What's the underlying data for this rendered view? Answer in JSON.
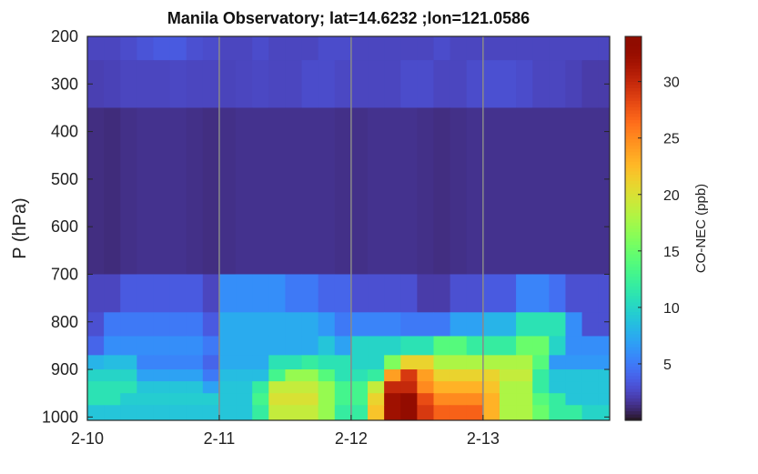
{
  "chart_data": {
    "type": "heatmap",
    "title": "Manila Observatory; lat=14.6232 ;lon=121.0586",
    "xlabel": "",
    "ylabel": "P (hPa)",
    "colorbar_label": "CO-NEC (ppb)",
    "colormap": "turbo",
    "clim": [
      0,
      34
    ],
    "colorbar_ticks": [
      5,
      10,
      15,
      20,
      25,
      30
    ],
    "x_ticks": [
      {
        "v": 0,
        "label": "2-10"
      },
      {
        "v": 1,
        "label": "2-11"
      },
      {
        "v": 2,
        "label": "2-12"
      },
      {
        "v": 3,
        "label": "2-13"
      }
    ],
    "xlim": [
      0,
      3.96
    ],
    "y_ticks": [
      200,
      300,
      400,
      500,
      600,
      700,
      800,
      900,
      1000
    ],
    "ylim": [
      200,
      1007
    ],
    "y_reversed": true,
    "x_step_days": 0.125,
    "pressure_bounds": [
      200,
      250,
      350,
      700,
      780,
      830,
      870,
      900,
      925,
      950,
      975,
      1007
    ],
    "rows": [
      [
        2.5,
        2.5,
        2.8,
        3.2,
        3.5,
        3.5,
        3.0,
        2.8,
        2.5,
        2.5,
        2.8,
        2.5,
        2.5,
        2.5,
        2.8,
        2.8,
        2.5,
        2.5,
        2.5,
        2.5,
        2.5,
        2.8,
        2.5,
        2.5,
        2.5,
        2.5,
        2.5,
        2.5,
        2.5,
        2.5,
        2.5,
        2.5
      ],
      [
        2.2,
        2.3,
        2.5,
        2.5,
        2.5,
        2.6,
        2.5,
        2.5,
        2.4,
        2.5,
        2.6,
        2.5,
        2.5,
        2.8,
        2.8,
        2.6,
        2.5,
        2.5,
        2.5,
        2.8,
        2.8,
        2.5,
        2.5,
        2.8,
        3.0,
        3.0,
        2.8,
        2.5,
        2.5,
        2.3,
        2.0,
        2.0
      ],
      [
        1.3,
        1.2,
        1.4,
        1.5,
        1.5,
        1.5,
        1.4,
        1.3,
        1.4,
        1.5,
        1.5,
        1.5,
        1.5,
        1.5,
        1.5,
        1.4,
        1.4,
        1.5,
        1.5,
        1.5,
        1.4,
        1.3,
        1.4,
        1.5,
        1.5,
        1.5,
        1.5,
        1.5,
        1.5,
        1.5,
        1.5,
        1.5
      ],
      [
        2.5,
        2.5,
        3.5,
        3.5,
        3.5,
        3.5,
        3.5,
        2.5,
        6,
        6,
        6,
        6,
        5,
        5,
        4,
        4,
        3,
        3,
        3,
        3,
        2,
        2,
        3,
        3,
        3.5,
        3.5,
        5.5,
        5.5,
        4.5,
        3,
        3,
        3
      ],
      [
        3,
        5,
        5,
        5,
        5,
        5,
        5,
        3.5,
        7.5,
        7.5,
        7.5,
        7.5,
        7.5,
        7.5,
        6.5,
        5,
        5.5,
        5.5,
        5.5,
        5,
        5,
        5,
        7,
        7,
        8,
        8,
        11,
        11,
        11,
        6,
        3,
        3
      ],
      [
        4,
        6,
        6,
        6,
        6,
        6,
        6,
        5,
        7.5,
        7.5,
        7.5,
        7.5,
        7.5,
        7.5,
        9,
        7,
        10,
        10,
        10,
        11,
        11,
        14,
        14,
        12,
        12,
        12,
        15,
        15,
        10,
        6,
        6,
        6
      ],
      [
        8,
        8.5,
        8.5,
        5.5,
        5.5,
        5.5,
        5.5,
        4,
        7.5,
        7.5,
        7.5,
        11,
        11,
        12,
        11,
        11,
        10,
        10,
        16,
        21,
        21,
        18,
        18,
        18,
        18,
        18,
        18,
        14,
        6.5,
        6.5,
        6.5,
        6.5
      ],
      [
        10,
        10,
        10,
        7,
        7,
        7,
        7,
        5,
        8.5,
        8.5,
        8.5,
        13,
        17,
        17,
        14,
        11,
        11,
        12,
        24,
        29,
        24,
        21,
        21,
        21,
        21,
        19,
        19,
        12,
        9,
        9,
        9,
        9
      ],
      [
        11,
        11,
        11,
        9,
        9,
        9,
        9,
        7,
        9,
        9,
        12,
        19,
        19,
        19,
        17,
        13,
        13,
        19,
        30,
        30,
        25,
        23,
        23,
        23,
        22,
        18,
        18,
        12,
        9,
        9,
        9,
        9
      ],
      [
        11,
        11,
        9.5,
        9.5,
        9.5,
        9.5,
        9.5,
        9.5,
        9,
        9,
        13,
        20,
        20,
        20,
        17,
        13,
        13,
        21,
        32,
        33,
        28,
        25,
        25,
        25,
        23,
        18,
        18,
        14,
        12,
        9,
        9,
        9
      ],
      [
        9,
        9,
        9,
        9,
        9,
        9,
        9,
        9,
        9,
        9,
        12,
        19,
        19,
        19,
        17,
        12,
        12,
        22,
        32,
        33,
        29,
        27,
        27,
        27,
        23,
        18,
        18,
        15,
        12,
        12,
        10,
        10
      ]
    ]
  }
}
